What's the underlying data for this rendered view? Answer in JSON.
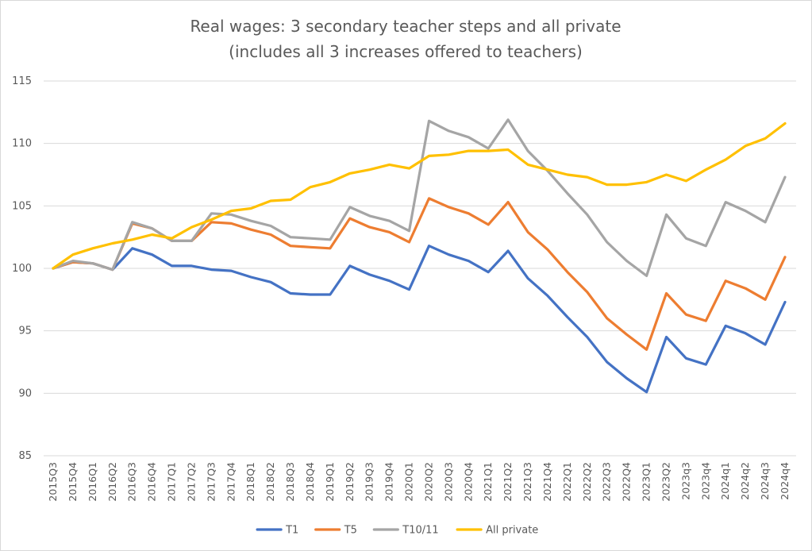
{
  "chart_data": {
    "type": "line",
    "title": "Real wages: 3 secondary teacher steps and all private",
    "subtitle": "(includes all 3 increases offered to teachers)",
    "xlabel": "",
    "ylabel": "",
    "ylim": [
      85,
      115
    ],
    "yticks": [
      85,
      90,
      95,
      100,
      105,
      110,
      115
    ],
    "grid": true,
    "legend_position": "bottom",
    "x": [
      "2015Q3",
      "2015Q4",
      "2016Q1",
      "2016Q2",
      "2016Q3",
      "2016Q4",
      "2017Q1",
      "2017Q2",
      "2017Q3",
      "2017Q4",
      "2018Q1",
      "2018Q2",
      "2018Q3",
      "2018Q4",
      "2019Q1",
      "2019Q2",
      "2019Q3",
      "2019Q4",
      "2020Q1",
      "2020Q2",
      "2020Q3",
      "2020Q4",
      "2021Q1",
      "2021Q2",
      "2021Q3",
      "2021Q4",
      "2022Q1",
      "2022Q2",
      "2022Q3",
      "2022Q4",
      "2023Q1",
      "2023Q2",
      "2023q3",
      "2023q4",
      "2024q1",
      "2024q2",
      "2024q3",
      "2024q4"
    ],
    "series": [
      {
        "name": "T1",
        "color": "#4472c4",
        "values": [
          100.0,
          100.5,
          100.4,
          99.9,
          101.6,
          101.1,
          100.2,
          100.2,
          99.9,
          99.8,
          99.3,
          98.9,
          98.0,
          97.9,
          97.9,
          100.2,
          99.5,
          99.0,
          98.3,
          101.8,
          101.1,
          100.6,
          99.7,
          101.4,
          99.2,
          97.8,
          96.1,
          94.5,
          92.5,
          91.2,
          90.1,
          94.5,
          92.8,
          92.3,
          95.4,
          94.8,
          93.9,
          97.3
        ]
      },
      {
        "name": "T5",
        "color": "#ed7d31",
        "values": [
          100.0,
          100.5,
          100.4,
          99.9,
          103.6,
          103.2,
          102.2,
          102.2,
          103.7,
          103.6,
          103.1,
          102.7,
          101.8,
          101.7,
          101.6,
          104.0,
          103.3,
          102.9,
          102.1,
          105.6,
          104.9,
          104.4,
          103.5,
          105.3,
          102.9,
          101.5,
          99.7,
          98.1,
          96.0,
          94.7,
          93.5,
          98.0,
          96.3,
          95.8,
          99.0,
          98.4,
          97.5,
          100.9
        ]
      },
      {
        "name": "T10/11",
        "color": "#a5a5a5",
        "values": [
          100.0,
          100.6,
          100.4,
          99.9,
          103.7,
          103.2,
          102.2,
          102.2,
          104.4,
          104.3,
          103.8,
          103.4,
          102.5,
          102.4,
          102.3,
          104.9,
          104.2,
          103.8,
          103.0,
          111.8,
          111.0,
          110.5,
          109.6,
          111.9,
          109.4,
          107.8,
          106.0,
          104.3,
          102.1,
          100.6,
          99.4,
          104.3,
          102.4,
          101.8,
          105.3,
          104.6,
          103.7,
          107.3
        ]
      },
      {
        "name": "All private",
        "color": "#ffc000",
        "values": [
          100.0,
          101.1,
          101.6,
          102.0,
          102.3,
          102.7,
          102.4,
          103.3,
          103.9,
          104.6,
          104.8,
          105.4,
          105.5,
          106.5,
          106.9,
          107.6,
          107.9,
          108.3,
          108.0,
          109.0,
          109.1,
          109.4,
          109.4,
          109.5,
          108.3,
          107.9,
          107.5,
          107.3,
          106.7,
          106.7,
          106.9,
          107.5,
          107.0,
          107.9,
          108.7,
          109.8,
          110.4,
          111.6
        ]
      }
    ]
  }
}
